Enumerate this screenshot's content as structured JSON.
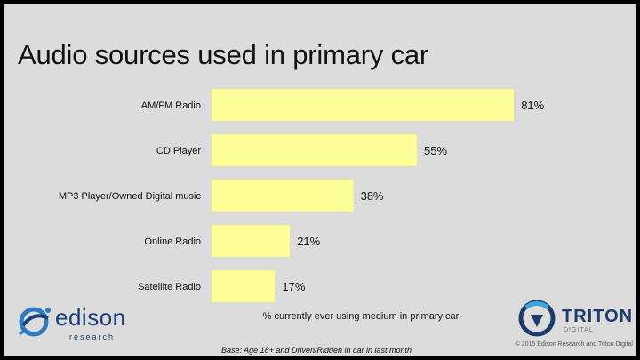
{
  "title": "Audio sources used in primary car",
  "subtitle": "% currently ever using medium in primary car",
  "base_note": "Base: Age 18+ and Driven/Ridden in car in last month",
  "copyright": "© 2015 Edison Research and Triton Digital",
  "logos": {
    "edison": {
      "word": "edison",
      "sub": "research",
      "icon": "edison-swirl-icon"
    },
    "triton": {
      "word": "TRITON",
      "sub": "DIGITAL",
      "icon": "triton-emblem-icon"
    }
  },
  "colors": {
    "bar": "#ffff99",
    "bar_stroke": "#e6e27a",
    "background": "#dcdcdc",
    "frame": "#000000"
  },
  "chart_data": {
    "type": "bar",
    "orientation": "horizontal",
    "categories": [
      "AM/FM Radio",
      "CD Player",
      "MP3 Player/Owned Digital music",
      "Online Radio",
      "Satellite Radio"
    ],
    "values": [
      81,
      55,
      38,
      21,
      17
    ],
    "data_labels": [
      "81%",
      "55%",
      "38%",
      "21%",
      "17%"
    ],
    "unit": "%",
    "xlim": [
      0,
      100
    ],
    "grid": false,
    "legend": "none"
  }
}
